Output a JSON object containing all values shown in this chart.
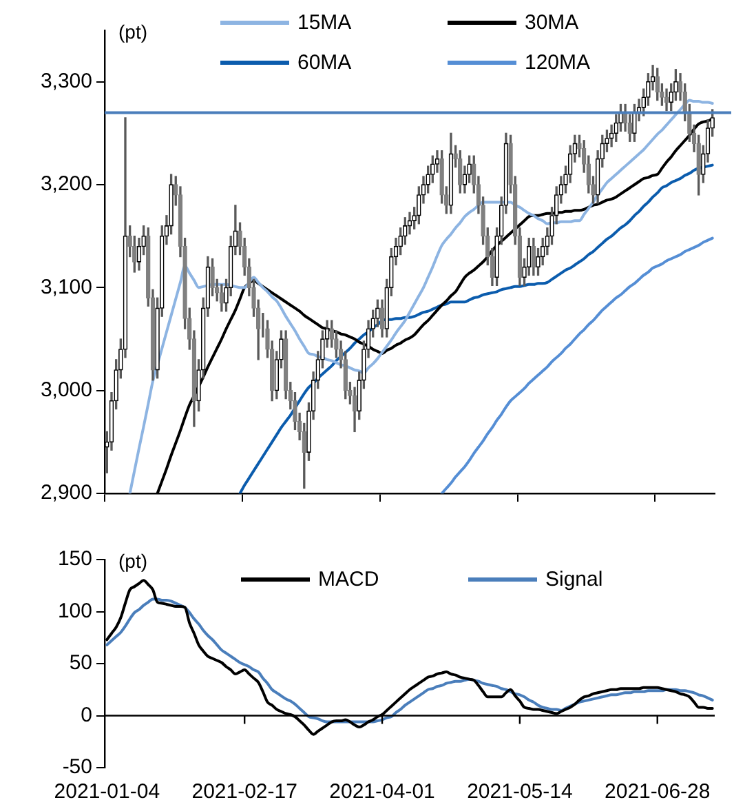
{
  "chart_data": [
    {
      "type": "candlestick",
      "ylabel": "(pt)",
      "legend": "top",
      "tick_labels": "y",
      "categories": [
        "2021-01-04",
        null,
        null,
        null,
        null,
        null,
        null,
        null,
        null,
        null,
        null,
        null,
        null,
        null,
        null,
        null,
        null,
        null,
        null,
        null,
        null,
        null,
        null,
        null,
        null,
        null,
        null,
        null,
        null,
        null,
        "2021-02-17",
        null,
        null,
        null,
        null,
        null,
        null,
        null,
        null,
        null,
        null,
        null,
        null,
        null,
        null,
        null,
        null,
        null,
        null,
        null,
        null,
        null,
        null,
        null,
        null,
        null,
        null,
        null,
        null,
        null,
        "2021-04-01",
        null,
        null,
        null,
        null,
        null,
        null,
        null,
        null,
        null,
        null,
        null,
        null,
        null,
        null,
        null,
        null,
        null,
        null,
        null,
        null,
        null,
        null,
        null,
        null,
        null,
        null,
        null,
        null,
        null,
        "2021-05-14",
        null,
        null,
        null,
        null,
        null,
        null,
        null,
        null,
        null,
        null,
        null,
        null,
        null,
        null,
        null,
        null,
        null,
        null,
        null,
        null,
        null,
        null,
        null,
        null,
        null,
        null,
        null,
        null,
        null,
        "2021-06-28",
        null,
        null,
        null,
        null,
        null,
        null,
        null,
        null,
        null,
        null,
        null,
        null
      ],
      "ohlc": [
        [
          2945,
          2960,
          2920,
          2950
        ],
        [
          2950,
          2998,
          2942,
          2990
        ],
        [
          2990,
          3030,
          2982,
          3020
        ],
        [
          3020,
          3050,
          3012,
          3040
        ],
        [
          3040,
          3265,
          3032,
          3150
        ],
        [
          3150,
          3160,
          3130,
          3140
        ],
        [
          3140,
          3150,
          3115,
          3125
        ],
        [
          3125,
          3148,
          3117,
          3140
        ],
        [
          3140,
          3160,
          3132,
          3150
        ],
        [
          3150,
          3158,
          3082,
          3090
        ],
        [
          3090,
          3098,
          3010,
          3020
        ],
        [
          3020,
          3090,
          3012,
          3080
        ],
        [
          3080,
          3160,
          3072,
          3150
        ],
        [
          3150,
          3170,
          3142,
          3160
        ],
        [
          3160,
          3210,
          3152,
          3200
        ],
        [
          3200,
          3208,
          3180,
          3190
        ],
        [
          3190,
          3198,
          3130,
          3140
        ],
        [
          3140,
          3148,
          3060,
          3070
        ],
        [
          3070,
          3080,
          3040,
          3050
        ],
        [
          3050,
          3058,
          2965,
          2990
        ],
        [
          2990,
          3030,
          2980,
          3020
        ],
        [
          3020,
          3090,
          3012,
          3080
        ],
        [
          3080,
          3130,
          3072,
          3120
        ],
        [
          3120,
          3128,
          3092,
          3100
        ],
        [
          3100,
          3108,
          3087,
          3095
        ],
        [
          3095,
          3103,
          3077,
          3085
        ],
        [
          3085,
          3108,
          3077,
          3100
        ],
        [
          3100,
          3150,
          3092,
          3140
        ],
        [
          3140,
          3180,
          3132,
          3155
        ],
        [
          3155,
          3163,
          3132,
          3140
        ],
        [
          3140,
          3148,
          3112,
          3120
        ],
        [
          3120,
          3128,
          3092,
          3100
        ],
        [
          3100,
          3108,
          3072,
          3080
        ],
        [
          3080,
          3088,
          3030,
          3060
        ],
        [
          3060,
          3075,
          3052,
          3060
        ],
        [
          3060,
          3068,
          3032,
          3040
        ],
        [
          3040,
          3048,
          2990,
          3000
        ],
        [
          3000,
          3038,
          2992,
          3030
        ],
        [
          3030,
          3058,
          3022,
          3050
        ],
        [
          3050,
          3058,
          2992,
          3000
        ],
        [
          3000,
          3008,
          2982,
          2990
        ],
        [
          2990,
          2998,
          2962,
          2970
        ],
        [
          2970,
          2978,
          2952,
          2960
        ],
        [
          2960,
          2968,
          2905,
          2940
        ],
        [
          2940,
          2988,
          2932,
          2980
        ],
        [
          2980,
          3018,
          2972,
          3010
        ],
        [
          3010,
          3038,
          3002,
          3030
        ],
        [
          3030,
          3058,
          3022,
          3050
        ],
        [
          3050,
          3068,
          3042,
          3060
        ],
        [
          3060,
          3068,
          3042,
          3050
        ],
        [
          3050,
          3058,
          3032,
          3040
        ],
        [
          3040,
          3048,
          3022,
          3030
        ],
        [
          3030,
          3038,
          2992,
          3000
        ],
        [
          3000,
          3008,
          2987,
          2995
        ],
        [
          2995,
          3003,
          2960,
          2980
        ],
        [
          2980,
          3018,
          2972,
          3010
        ],
        [
          3010,
          3048,
          3002,
          3040
        ],
        [
          3040,
          3068,
          3032,
          3060
        ],
        [
          3060,
          3078,
          3052,
          3070
        ],
        [
          3070,
          3088,
          3062,
          3080
        ],
        [
          3080,
          3088,
          3052,
          3060
        ],
        [
          3060,
          3108,
          3052,
          3100
        ],
        [
          3100,
          3138,
          3092,
          3130
        ],
        [
          3130,
          3148,
          3122,
          3140
        ],
        [
          3140,
          3158,
          3132,
          3150
        ],
        [
          3150,
          3168,
          3142,
          3160
        ],
        [
          3160,
          3173,
          3152,
          3165
        ],
        [
          3165,
          3178,
          3157,
          3170
        ],
        [
          3170,
          3198,
          3162,
          3190
        ],
        [
          3190,
          3208,
          3182,
          3200
        ],
        [
          3200,
          3218,
          3192,
          3210
        ],
        [
          3210,
          3228,
          3202,
          3220
        ],
        [
          3220,
          3233,
          3212,
          3225
        ],
        [
          3225,
          3233,
          3182,
          3190
        ],
        [
          3190,
          3198,
          3172,
          3180
        ],
        [
          3180,
          3250,
          3172,
          3230
        ],
        [
          3230,
          3238,
          3217,
          3225
        ],
        [
          3225,
          3233,
          3192,
          3200
        ],
        [
          3200,
          3218,
          3192,
          3210
        ],
        [
          3210,
          3228,
          3202,
          3220
        ],
        [
          3220,
          3228,
          3192,
          3200
        ],
        [
          3200,
          3208,
          3172,
          3180
        ],
        [
          3180,
          3188,
          3142,
          3150
        ],
        [
          3150,
          3158,
          3122,
          3130
        ],
        [
          3130,
          3138,
          3102,
          3110
        ],
        [
          3110,
          3158,
          3102,
          3150
        ],
        [
          3150,
          3188,
          3142,
          3180
        ],
        [
          3180,
          3250,
          3172,
          3240
        ],
        [
          3240,
          3248,
          3192,
          3200
        ],
        [
          3200,
          3208,
          3142,
          3150
        ],
        [
          3150,
          3158,
          3102,
          3110
        ],
        [
          3110,
          3128,
          3102,
          3120
        ],
        [
          3120,
          3148,
          3112,
          3140
        ],
        [
          3140,
          3148,
          3112,
          3120
        ],
        [
          3120,
          3138,
          3112,
          3130
        ],
        [
          3130,
          3148,
          3122,
          3140
        ],
        [
          3140,
          3158,
          3132,
          3150
        ],
        [
          3150,
          3178,
          3142,
          3170
        ],
        [
          3170,
          3198,
          3162,
          3190
        ],
        [
          3190,
          3208,
          3182,
          3200
        ],
        [
          3200,
          3218,
          3192,
          3210
        ],
        [
          3210,
          3238,
          3202,
          3230
        ],
        [
          3230,
          3248,
          3222,
          3240
        ],
        [
          3240,
          3248,
          3227,
          3235
        ],
        [
          3235,
          3243,
          3212,
          3220
        ],
        [
          3220,
          3228,
          3192,
          3200
        ],
        [
          3200,
          3208,
          3182,
          3190
        ],
        [
          3190,
          3233,
          3182,
          3225
        ],
        [
          3225,
          3248,
          3217,
          3240
        ],
        [
          3240,
          3253,
          3232,
          3245
        ],
        [
          3245,
          3258,
          3237,
          3250
        ],
        [
          3250,
          3268,
          3242,
          3260
        ],
        [
          3260,
          3278,
          3252,
          3270
        ],
        [
          3270,
          3278,
          3252,
          3260
        ],
        [
          3260,
          3268,
          3242,
          3250
        ],
        [
          3250,
          3278,
          3242,
          3270
        ],
        [
          3270,
          3283,
          3262,
          3275
        ],
        [
          3275,
          3293,
          3267,
          3285
        ],
        [
          3285,
          3308,
          3277,
          3300
        ],
        [
          3300,
          3316,
          3292,
          3305
        ],
        [
          3305,
          3313,
          3282,
          3290
        ],
        [
          3290,
          3298,
          3277,
          3285
        ],
        [
          3285,
          3293,
          3272,
          3280
        ],
        [
          3280,
          3298,
          3272,
          3290
        ],
        [
          3290,
          3312,
          3282,
          3300
        ],
        [
          3300,
          3308,
          3282,
          3290
        ],
        [
          3290,
          3298,
          3262,
          3270
        ],
        [
          3270,
          3278,
          3242,
          3250
        ],
        [
          3250,
          3258,
          3232,
          3240
        ],
        [
          3240,
          3248,
          3190,
          3210
        ],
        [
          3210,
          3238,
          3202,
          3230
        ],
        [
          3230,
          3263,
          3222,
          3255
        ],
        [
          3255,
          3273,
          3247,
          3265
        ]
      ],
      "series": [
        {
          "name": "15MA",
          "type": "line",
          "color": "#8db4e2",
          "values": [
            null,
            null,
            null,
            null,
            null,
            2900,
            2922,
            2944,
            2965,
            2987,
            3009,
            3025,
            3041,
            3057,
            3073,
            3089,
            3105,
            3121,
            3114,
            3107,
            3100,
            3101,
            3102,
            3103,
            3103,
            3103,
            3103,
            3102,
            3101,
            3100,
            3100,
            3105,
            3110,
            3105,
            3100,
            3096,
            3091,
            3087,
            3080,
            3072,
            3065,
            3058,
            3050,
            3043,
            3036,
            3035,
            3033,
            3032,
            3030,
            3029,
            3027,
            3025,
            3024,
            3022,
            3020,
            3019,
            3017,
            3022,
            3026,
            3031,
            3037,
            3043,
            3049,
            3056,
            3062,
            3068,
            3076,
            3084,
            3092,
            3100,
            3110,
            3120,
            3131,
            3141,
            3147,
            3152,
            3158,
            3163,
            3169,
            3173,
            3176,
            3180,
            3183,
            3183,
            3183,
            3183,
            3183,
            3183,
            3183,
            3180,
            3178,
            3175,
            3172,
            3170,
            3167,
            3165,
            3162,
            3163,
            3163,
            3164,
            3164,
            3164,
            3165,
            3165,
            3171,
            3177,
            3183,
            3190,
            3196,
            3202,
            3206,
            3210,
            3214,
            3218,
            3222,
            3226,
            3230,
            3234,
            3239,
            3244,
            3249,
            3253,
            3258,
            3263,
            3268,
            3273,
            3278,
            3282,
            3281,
            3281,
            3280,
            3280,
            3279
          ]
        },
        {
          "name": "30MA",
          "type": "line",
          "color": "#000000",
          "values": [
            null,
            null,
            null,
            null,
            null,
            null,
            null,
            null,
            null,
            null,
            null,
            2900,
            2912,
            2924,
            2937,
            2949,
            2961,
            2974,
            2986,
            2995,
            3004,
            3013,
            3023,
            3032,
            3041,
            3050,
            3060,
            3069,
            3078,
            3089,
            3100,
            3104,
            3107,
            3104,
            3101,
            3098,
            3095,
            3092,
            3089,
            3086,
            3083,
            3080,
            3077,
            3073,
            3070,
            3067,
            3064,
            3061,
            3060,
            3058,
            3057,
            3055,
            3054,
            3052,
            3050,
            3047,
            3045,
            3043,
            3040,
            3038,
            3036,
            3039,
            3041,
            3044,
            3046,
            3049,
            3051,
            3054,
            3059,
            3064,
            3068,
            3073,
            3078,
            3083,
            3087,
            3092,
            3096,
            3103,
            3110,
            3114,
            3117,
            3121,
            3125,
            3130,
            3136,
            3141,
            3145,
            3149,
            3153,
            3157,
            3161,
            3165,
            3169,
            3170,
            3170,
            3171,
            3172,
            3172,
            3173,
            3173,
            3174,
            3174,
            3175,
            3175,
            3176,
            3178,
            3180,
            3181,
            3183,
            3185,
            3186,
            3188,
            3191,
            3194,
            3197,
            3200,
            3203,
            3206,
            3207,
            3209,
            3210,
            3216,
            3222,
            3227,
            3233,
            3238,
            3243,
            3248,
            3254,
            3259,
            3261,
            3262,
            3264
          ]
        },
        {
          "name": "60MA",
          "type": "line",
          "color": "#0b5cad",
          "values": [
            null,
            null,
            null,
            null,
            null,
            null,
            null,
            null,
            null,
            null,
            null,
            null,
            null,
            null,
            null,
            null,
            null,
            null,
            null,
            null,
            null,
            null,
            null,
            null,
            null,
            null,
            null,
            null,
            null,
            2900,
            2908,
            2915,
            2922,
            2929,
            2936,
            2943,
            2950,
            2957,
            2964,
            2970,
            2976,
            2983,
            2990,
            2997,
            3003,
            3007,
            3012,
            3016,
            3020,
            3024,
            3029,
            3033,
            3037,
            3041,
            3046,
            3050,
            3054,
            3057,
            3061,
            3064,
            3068,
            3069,
            3069,
            3070,
            3070,
            3071,
            3071,
            3072,
            3074,
            3076,
            3077,
            3079,
            3081,
            3083,
            3084,
            3086,
            3086,
            3086,
            3086,
            3088,
            3090,
            3091,
            3093,
            3094,
            3095,
            3096,
            3098,
            3099,
            3100,
            3101,
            3101,
            3102,
            3103,
            3103,
            3104,
            3104,
            3105,
            3108,
            3111,
            3114,
            3117,
            3119,
            3122,
            3125,
            3128,
            3132,
            3135,
            3139,
            3143,
            3147,
            3150,
            3154,
            3158,
            3161,
            3165,
            3170,
            3174,
            3179,
            3183,
            3188,
            3192,
            3197,
            3199,
            3202,
            3204,
            3206,
            3209,
            3211,
            3214,
            3216,
            3217,
            3218,
            3219
          ]
        },
        {
          "name": "120MA",
          "type": "line",
          "color": "#558ed5",
          "values": [
            null,
            null,
            null,
            null,
            null,
            null,
            null,
            null,
            null,
            null,
            null,
            null,
            null,
            null,
            null,
            null,
            null,
            null,
            null,
            null,
            null,
            null,
            null,
            null,
            null,
            null,
            null,
            null,
            null,
            null,
            null,
            null,
            null,
            null,
            null,
            null,
            null,
            null,
            null,
            null,
            null,
            null,
            null,
            null,
            null,
            null,
            null,
            null,
            null,
            null,
            null,
            null,
            null,
            null,
            null,
            null,
            null,
            null,
            null,
            null,
            null,
            null,
            null,
            null,
            null,
            null,
            null,
            null,
            null,
            null,
            null,
            null,
            null,
            2900,
            2905,
            2910,
            2916,
            2921,
            2926,
            2932,
            2939,
            2945,
            2951,
            2958,
            2964,
            2971,
            2977,
            2984,
            2990,
            2994,
            2998,
            3002,
            3007,
            3011,
            3015,
            3019,
            3023,
            3028,
            3032,
            3036,
            3041,
            3045,
            3050,
            3055,
            3059,
            3064,
            3068,
            3073,
            3078,
            3082,
            3086,
            3090,
            3093,
            3097,
            3101,
            3104,
            3108,
            3112,
            3115,
            3119,
            3121,
            3123,
            3126,
            3128,
            3130,
            3132,
            3135,
            3137,
            3139,
            3141,
            3144,
            3146,
            3148
          ]
        }
      ],
      "ylim": [
        2900,
        3350
      ],
      "yticks": [
        {
          "value": 2900,
          "label": "2,900"
        },
        {
          "value": 3000,
          "label": "3,000"
        },
        {
          "value": 3100,
          "label": "3,100"
        },
        {
          "value": 3200,
          "label": "3,200"
        },
        {
          "value": 3300,
          "label": "3,300"
        }
      ],
      "ref_lines": [
        {
          "axis": "y",
          "value": 3270,
          "color": "#4a7ebb"
        }
      ]
    },
    {
      "type": "line",
      "ylabel": "(pt)",
      "legend": "top right",
      "categories": [
        "2021-01-04",
        null,
        null,
        null,
        null,
        null,
        null,
        null,
        null,
        null,
        null,
        null,
        null,
        null,
        null,
        null,
        null,
        null,
        null,
        null,
        null,
        null,
        null,
        null,
        null,
        null,
        null,
        null,
        null,
        null,
        "2021-02-17",
        null,
        null,
        null,
        null,
        null,
        null,
        null,
        null,
        null,
        null,
        null,
        null,
        null,
        null,
        null,
        null,
        null,
        null,
        null,
        null,
        null,
        null,
        null,
        null,
        null,
        null,
        null,
        null,
        null,
        "2021-04-01",
        null,
        null,
        null,
        null,
        null,
        null,
        null,
        null,
        null,
        null,
        null,
        null,
        null,
        null,
        null,
        null,
        null,
        null,
        null,
        null,
        null,
        null,
        null,
        null,
        null,
        null,
        null,
        null,
        null,
        "2021-05-14",
        null,
        null,
        null,
        null,
        null,
        null,
        null,
        null,
        null,
        null,
        null,
        null,
        null,
        null,
        null,
        null,
        null,
        null,
        null,
        null,
        null,
        null,
        null,
        null,
        null,
        null,
        null,
        null,
        null,
        "2021-06-28",
        null,
        null,
        null,
        null,
        null,
        null,
        null,
        null,
        null,
        null,
        null,
        null
      ],
      "series": [
        {
          "name": "MACD",
          "color": "#000000",
          "values": [
            73,
            79,
            85,
            94,
            108,
            121,
            124,
            127,
            130,
            126,
            121,
            109,
            108,
            107,
            106,
            105,
            105,
            104,
            89,
            79,
            68,
            62,
            57,
            55,
            53,
            51,
            47,
            44,
            40,
            42,
            44,
            40,
            36,
            32,
            23,
            13,
            10,
            6,
            4,
            2,
            1,
            -1,
            -5,
            -9,
            -14,
            -18,
            -15,
            -12,
            -9,
            -6,
            -5,
            -5,
            -4,
            -6,
            -9,
            -11,
            -9,
            -6,
            -4,
            -1,
            1,
            5,
            9,
            13,
            17,
            21,
            25,
            28,
            31,
            34,
            37,
            38,
            40,
            41,
            42,
            40,
            39,
            37,
            36,
            35,
            34,
            29,
            23,
            18,
            18,
            18,
            18,
            22,
            25,
            19,
            14,
            8,
            7,
            6,
            6,
            5,
            4,
            3,
            2,
            4,
            6,
            8,
            11,
            15,
            18,
            19,
            21,
            22,
            23,
            24,
            25,
            25,
            26,
            26,
            26,
            26,
            26,
            27,
            27,
            27,
            27,
            26,
            25,
            24,
            23,
            21,
            20,
            18,
            13,
            8,
            8,
            7,
            7
          ]
        },
        {
          "name": "Signal",
          "color": "#4a7ebb",
          "values": [
            68,
            72,
            76,
            80,
            86,
            93,
            99,
            102,
            106,
            109,
            112,
            112,
            111,
            111,
            110,
            108,
            106,
            104,
            99,
            93,
            88,
            82,
            77,
            73,
            68,
            63,
            60,
            57,
            54,
            51,
            49,
            47,
            44,
            42,
            36,
            31,
            25,
            22,
            19,
            16,
            14,
            11,
            7,
            3,
            -1,
            -2,
            -3,
            -5,
            -6,
            -6,
            -6,
            -6,
            -6,
            -6,
            -6,
            -6,
            -6,
            -6,
            -6,
            -5,
            -4,
            -2,
            -1,
            3,
            6,
            10,
            13,
            16,
            19,
            22,
            25,
            26,
            28,
            29,
            31,
            32,
            33,
            33,
            34,
            35,
            34,
            33,
            31,
            30,
            29,
            28,
            26,
            25,
            23,
            21,
            20,
            18,
            15,
            13,
            10,
            8,
            7,
            6,
            6,
            5,
            7,
            9,
            11,
            13,
            14,
            15,
            16,
            17,
            18,
            19,
            20,
            20,
            21,
            22,
            22,
            23,
            23,
            23,
            24,
            24,
            24,
            24,
            25,
            25,
            25,
            24,
            24,
            23,
            22,
            20,
            19,
            17,
            15
          ]
        }
      ],
      "ylim": [
        -50,
        150
      ],
      "yticks": [
        -50,
        0,
        50,
        100,
        150
      ]
    }
  ]
}
